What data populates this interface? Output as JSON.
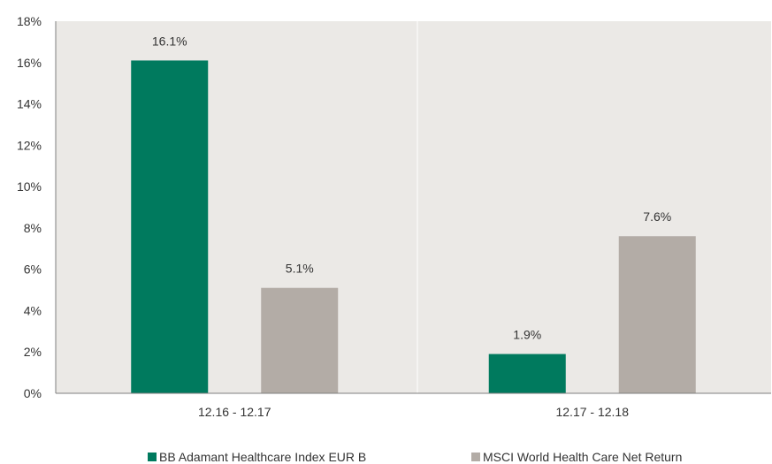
{
  "chart_data": {
    "type": "bar",
    "categories": [
      "12.16 - 12.17",
      "12.17 - 12.18"
    ],
    "series": [
      {
        "name": "BB Adamant Healthcare Index EUR B",
        "values": [
          16.1,
          1.9
        ],
        "labels": [
          "16.1%",
          "1.9%"
        ],
        "color": "#007A5E"
      },
      {
        "name": "MSCI World Health Care Net Return",
        "values": [
          5.1,
          7.6
        ],
        "labels": [
          "5.1%",
          "7.6%"
        ],
        "color": "#B3ACA6"
      }
    ],
    "yticks": [
      "0%",
      "2%",
      "4%",
      "6%",
      "8%",
      "10%",
      "12%",
      "14%",
      "16%",
      "18%"
    ],
    "ylim": [
      0,
      18
    ],
    "legend": "bottom",
    "grid": false,
    "plot_background": "#EBE9E6",
    "divider_color": "#FFFFFF",
    "axis_color": "#7F7F7F"
  }
}
